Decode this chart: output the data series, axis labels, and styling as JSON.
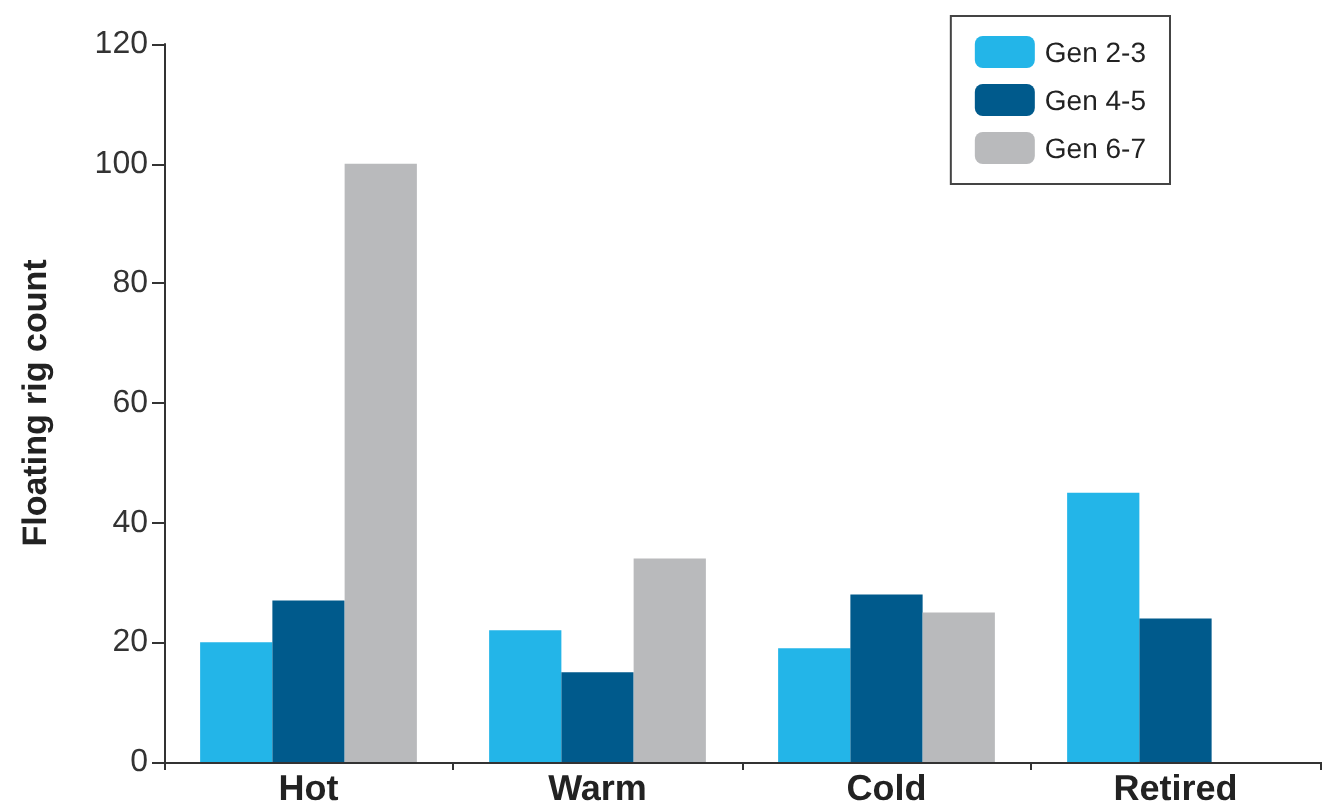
{
  "chart_data": {
    "type": "bar",
    "ylabel": "Floating rig count",
    "categories": [
      "Hot",
      "Warm",
      "Cold",
      "Retired"
    ],
    "series": [
      {
        "name": "Gen 2-3",
        "color": "#23b5e8",
        "values": [
          20,
          22,
          19,
          45
        ]
      },
      {
        "name": "Gen 4-5",
        "color": "#005a8c",
        "values": [
          27,
          15,
          28,
          24
        ]
      },
      {
        "name": "Gen 6-7",
        "color": "#b9babc",
        "values": [
          100,
          34,
          25,
          null
        ]
      }
    ],
    "ylim": [
      0,
      120
    ],
    "yticks": [
      0,
      20,
      40,
      60,
      80,
      100,
      120
    ],
    "grid": false,
    "legend": "top right"
  }
}
